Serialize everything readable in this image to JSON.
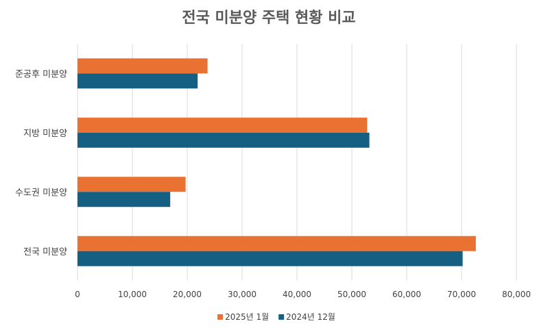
{
  "chart_data": {
    "type": "bar",
    "orientation": "horizontal",
    "title": "전국 미분양 주택 현황 비교",
    "categories": [
      "준공후 미분양",
      "지방 미분양",
      "수도권 미분양",
      "전국 미분양"
    ],
    "series": [
      {
        "name": "2025년 1월",
        "color": "#E97132",
        "values": [
          23700,
          52800,
          19700,
          72600
        ]
      },
      {
        "name": "2024년 12월",
        "color": "#156082",
        "values": [
          21900,
          53200,
          16900,
          70200
        ]
      }
    ],
    "xlim": [
      0,
      80000
    ],
    "ticks": [
      "0",
      "10,000",
      "20,000",
      "30,000",
      "40,000",
      "50,000",
      "60,000",
      "70,000",
      "80,000"
    ],
    "grid": true,
    "legend_position": "bottom"
  }
}
